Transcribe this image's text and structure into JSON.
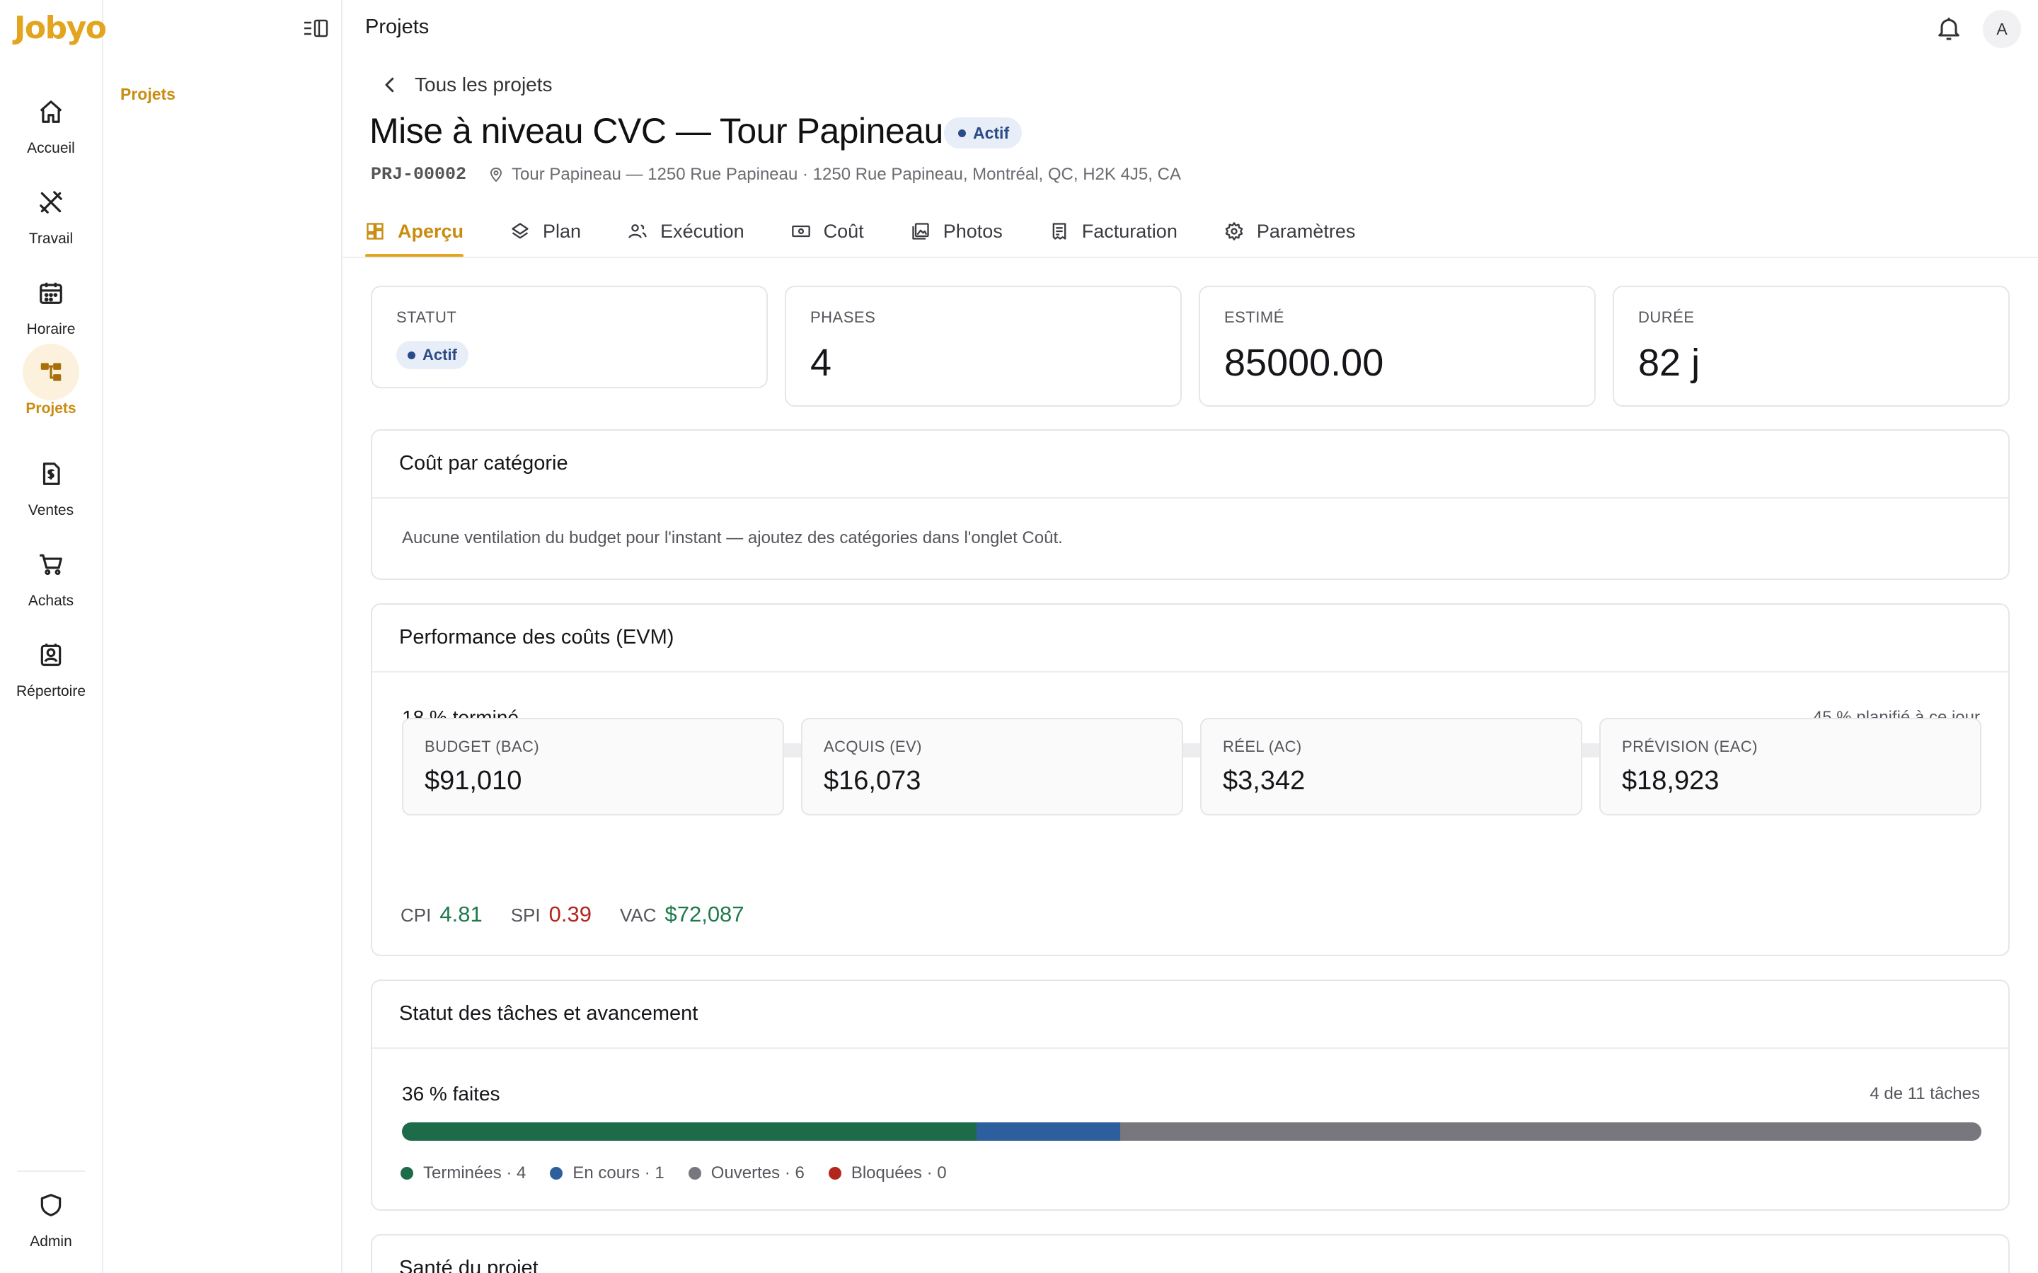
{
  "app": {
    "logo": "Jobyo"
  },
  "rail": {
    "items": [
      {
        "label": "Accueil",
        "icon": "home-icon"
      },
      {
        "label": "Travail",
        "icon": "tools-icon"
      },
      {
        "label": "Horaire",
        "icon": "calendar-icon"
      },
      {
        "label": "Projets",
        "icon": "projects-icon"
      },
      {
        "label": "Ventes",
        "icon": "invoice-icon"
      },
      {
        "label": "Achats",
        "icon": "cart-icon"
      },
      {
        "label": "Répertoire",
        "icon": "contacts-icon"
      }
    ],
    "admin": {
      "label": "Admin",
      "icon": "shield-icon"
    },
    "active_color": "#c98c10"
  },
  "subnav": {
    "items": [
      {
        "label": "Projets"
      }
    ]
  },
  "topbar": {
    "title": "Projets",
    "avatar_initial": "A"
  },
  "project": {
    "back_label": "Tous les projets",
    "title": "Mise à niveau CVC — Tour Papineau",
    "status": "Actif",
    "code": "PRJ-00002",
    "location": "Tour Papineau — 1250 Rue Papineau · 1250 Rue Papineau, Montréal, QC, H2K 4J5, CA"
  },
  "tabs": [
    {
      "label": "Aperçu",
      "icon": "grid-icon",
      "active": true
    },
    {
      "label": "Plan",
      "icon": "layers-icon",
      "active": false
    },
    {
      "label": "Exécution",
      "icon": "people-icon",
      "active": false
    },
    {
      "label": "Coût",
      "icon": "money-icon",
      "active": false
    },
    {
      "label": "Photos",
      "icon": "photos-icon",
      "active": false
    },
    {
      "label": "Facturation",
      "icon": "receipt-icon",
      "active": false
    },
    {
      "label": "Paramètres",
      "icon": "gear-icon",
      "active": false
    }
  ],
  "kpis": {
    "statut": {
      "label": "STATUT",
      "value": "Actif"
    },
    "phases": {
      "label": "PHASES",
      "value": "4"
    },
    "estime": {
      "label": "ESTIMÉ",
      "value": "85000.00"
    },
    "duree": {
      "label": "DURÉE",
      "value": "82 j"
    }
  },
  "cost_by_category": {
    "title": "Coût par catégorie",
    "empty_text": "Aucune ventilation du budget pour l'instant — ajoutez des catégories dans l'onglet Coût."
  },
  "evm": {
    "title": "Performance des coûts (EVM)",
    "complete_label": "18 % terminé",
    "complete_pct": 18,
    "planned_label": "45 % planifié à ce jour",
    "bar_color": "#e3a41f",
    "budget": {
      "label": "BUDGET (BAC)",
      "value": "$91,010"
    },
    "earned": {
      "label": "ACQUIS (EV)",
      "value": "$16,073"
    },
    "actual": {
      "label": "RÉEL (AC)",
      "value": "$3,342"
    },
    "forecast": {
      "label": "PRÉVISION (EAC)",
      "value": "$18,923"
    },
    "cpi": {
      "label": "CPI",
      "value": "4.81",
      "color": "#1f7a4d"
    },
    "spi": {
      "label": "SPI",
      "value": "0.39",
      "color": "#b3261e"
    },
    "vac": {
      "label": "VAC",
      "value": "$72,087",
      "color": "#1f7a4d"
    }
  },
  "tasks": {
    "title": "Statut des tâches et avancement",
    "done_label": "36 % faites",
    "count_label": "4 de 11 tâches",
    "total": 11,
    "segments": [
      {
        "label": "Terminées · 4",
        "count": 4,
        "color": "#1e6b4a"
      },
      {
        "label": "En cours · 1",
        "count": 1,
        "color": "#2d5e9e"
      },
      {
        "label": "Ouvertes · 6",
        "count": 6,
        "color": "#77777d"
      },
      {
        "label": "Bloquées · 0",
        "count": 0,
        "color": "#b3261e"
      }
    ]
  },
  "health": {
    "title": "Santé du projet"
  }
}
